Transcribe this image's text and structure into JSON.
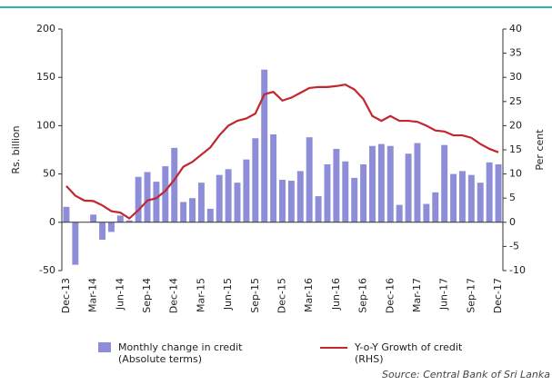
{
  "chart_data": {
    "type": "combo",
    "ylabel": "Rs. billion",
    "y2label": "Per cent",
    "source": "Source: Central Bank of Sri Lanka",
    "categories": [
      "Dec-13",
      null,
      null,
      "Mar-14",
      null,
      null,
      "Jun-14",
      null,
      null,
      "Sep-14",
      null,
      null,
      "Dec-14",
      null,
      null,
      "Mar-15",
      null,
      null,
      "Jun-15",
      null,
      null,
      "Sep-15",
      null,
      null,
      "Dec-15",
      null,
      null,
      "Mar-16",
      null,
      null,
      "Jun-16",
      null,
      null,
      "Sep-16",
      null,
      null,
      "Dec-16",
      null,
      null,
      "Mar-17",
      null,
      null,
      "Jun-17",
      null,
      null,
      "Sep-17",
      null,
      null,
      "Dec-17"
    ],
    "series": [
      {
        "name": "Monthly change in credit (Absolute terms)",
        "type": "bar",
        "color": "#8e8ed8",
        "values": [
          16,
          -44,
          0,
          8,
          -18,
          -10,
          7,
          2,
          47,
          52,
          42,
          58,
          77,
          21,
          25,
          41,
          14,
          49,
          55,
          41,
          65,
          87,
          158,
          91,
          44,
          43,
          53,
          88,
          27,
          60,
          76,
          63,
          46,
          60,
          79,
          81,
          79,
          18,
          71,
          82,
          19,
          31,
          80,
          50,
          53,
          49,
          41,
          62,
          60
        ]
      },
      {
        "name": "Y-o-Y Growth of credit (RHS)",
        "type": "line",
        "axis": "y2",
        "color": "#c1272d",
        "values": [
          7.5,
          5.5,
          4.5,
          4.4,
          3.5,
          2.3,
          2,
          0.8,
          2.5,
          4.5,
          5,
          6.5,
          8.8,
          11.5,
          12.5,
          14,
          15.5,
          18,
          20,
          21,
          21.5,
          22.5,
          26.5,
          27,
          25.2,
          25.8,
          26.8,
          27.8,
          28,
          28,
          28.2,
          28.5,
          27.5,
          25.5,
          22,
          21,
          22,
          21,
          21,
          20.8,
          20,
          19,
          18.8,
          18,
          18,
          17.5,
          16.2,
          15.2,
          14.5
        ]
      }
    ],
    "ylim": [
      -50,
      200
    ],
    "yticks": [
      -50,
      0,
      50,
      100,
      150,
      200
    ],
    "y2lim": [
      -10,
      40
    ],
    "y2ticks": [
      -10,
      -5,
      0,
      5,
      10,
      15,
      20,
      25,
      30,
      35,
      40
    ]
  }
}
